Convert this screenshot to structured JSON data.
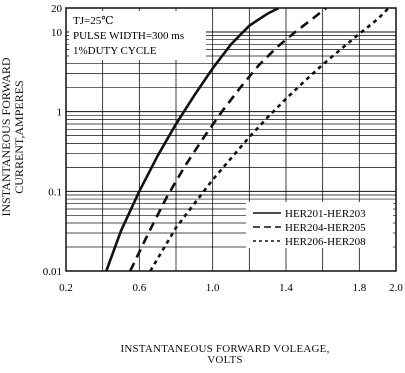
{
  "chart_data": {
    "type": "line",
    "xlabel": "INSTANTANEOUS FORWARD VOLEAGE,\nVOLTS",
    "ylabel": "INSTANTANEOUS FORWARD\nCURRENT,AMPERES",
    "xlim": [
      0.2,
      2.0
    ],
    "ylim": [
      0.01,
      20
    ],
    "y_scale": "log",
    "grid": true,
    "x_ticks": [
      "0.2",
      "0.6",
      "1.0",
      "1.4",
      "1.8",
      "2.0"
    ],
    "x_tick_values": [
      0.2,
      0.6,
      1.0,
      1.4,
      1.8,
      2.0
    ],
    "y_ticks": [
      "0.01",
      "0.1",
      "1",
      "10",
      "20"
    ],
    "y_tick_values": [
      0.01,
      0.1,
      1,
      10,
      20
    ],
    "annotation": [
      "TJ=25℃",
      "PULSE WIDTH=300 ms",
      "1%DUTY CYCLE"
    ],
    "legend_position": "bottom-right",
    "series": [
      {
        "name": "HER201-HER203",
        "style": "solid",
        "color": "#111111",
        "x": [
          0.42,
          0.5,
          0.6,
          0.7,
          0.8,
          0.9,
          1.0,
          1.1,
          1.2,
          1.3,
          1.36
        ],
        "y": [
          0.01,
          0.032,
          0.1,
          0.28,
          0.7,
          1.6,
          3.5,
          7,
          12,
          17,
          20
        ]
      },
      {
        "name": "HER204-HER205",
        "style": "dashed",
        "color": "#111111",
        "x": [
          0.55,
          0.65,
          0.75,
          0.85,
          0.95,
          1.05,
          1.15,
          1.25,
          1.35,
          1.45,
          1.55,
          1.62
        ],
        "y": [
          0.01,
          0.03,
          0.085,
          0.21,
          0.47,
          1.0,
          2.0,
          3.8,
          6.4,
          10,
          15,
          20
        ]
      },
      {
        "name": "HER206-HER208",
        "style": "dotted",
        "color": "#111111",
        "x": [
          0.66,
          0.8,
          0.9,
          1.0,
          1.1,
          1.2,
          1.3,
          1.4,
          1.5,
          1.6,
          1.7,
          1.8,
          1.9,
          1.96
        ],
        "y": [
          0.01,
          0.035,
          0.07,
          0.14,
          0.26,
          0.48,
          0.85,
          1.45,
          2.4,
          3.9,
          6.1,
          9.5,
          14.5,
          20
        ]
      }
    ]
  }
}
